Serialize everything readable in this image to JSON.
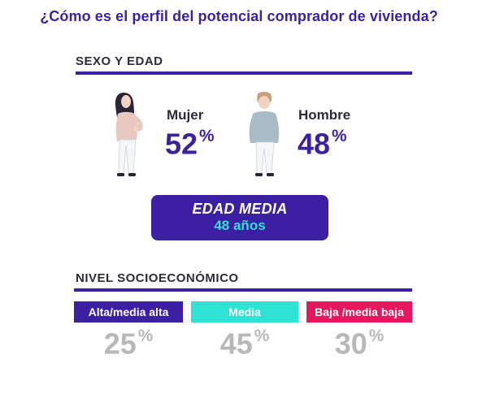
{
  "header": {
    "title": "¿Cómo es el perfil del potencial comprador de vivienda?"
  },
  "sexo_edad": {
    "section_title": "SEXO Y EDAD",
    "mujer": {
      "label": "Mujer",
      "value": "52",
      "unit": "%",
      "icon": "woman-figure-icon"
    },
    "hombre": {
      "label": "Hombre",
      "value": "48",
      "unit": "%",
      "icon": "man-figure-icon"
    },
    "edad_media": {
      "title": "EDAD MEDIA",
      "value": "48 años"
    }
  },
  "nivel": {
    "section_title": "NIVEL SOCIOECONÓMICO",
    "segments": [
      {
        "label": "Alta/media alta",
        "value": "25",
        "unit": "%",
        "color": "#3d1fa3"
      },
      {
        "label": "Media",
        "value": "45",
        "unit": "%",
        "color": "#2ee3d3"
      },
      {
        "label": "Baja /media baja",
        "value": "30",
        "unit": "%",
        "color": "#e8175d"
      }
    ]
  },
  "colors": {
    "accent": "#3d1fa3",
    "teal": "#2ee3d3",
    "pink": "#e8175d",
    "grey_value": "#b8b8b8"
  }
}
